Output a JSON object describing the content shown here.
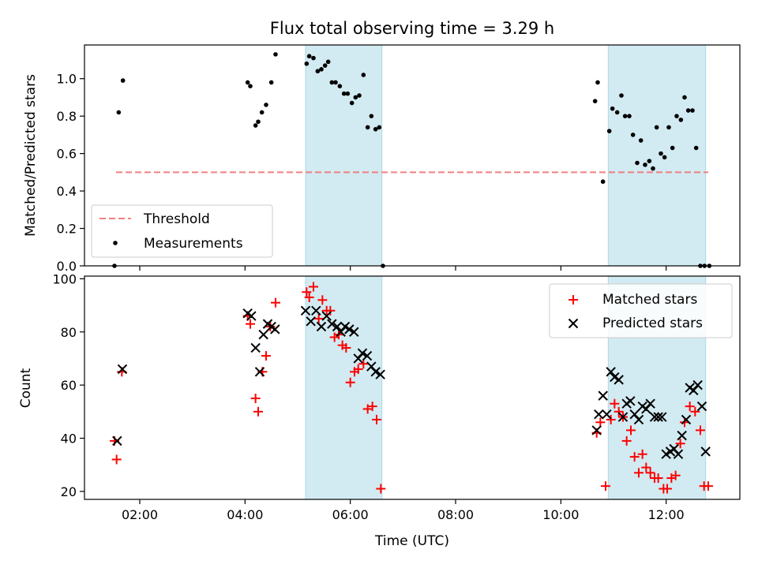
{
  "title": "Flux total observing time = 3.29 h",
  "colors": {
    "shade": "#add8e6",
    "threshold": "#f08080",
    "measurement": "#000000",
    "matched": "#ff0000",
    "predicted": "#000000"
  },
  "chart_data": [
    {
      "type": "scatter",
      "ylabel": "Matched/Predicted stars",
      "ylim": [
        0,
        1.18
      ],
      "yticks": [
        0.0,
        0.2,
        0.4,
        0.6,
        0.8,
        1.0
      ],
      "ytick_labels": [
        "0.0",
        "0.2",
        "0.4",
        "0.6",
        "0.8",
        "1.0"
      ],
      "legend_position": "lower-left",
      "legend": [
        {
          "key": "threshold",
          "label": "Threshold"
        },
        {
          "key": "measurement",
          "label": "Measurements"
        }
      ],
      "threshold": {
        "value": 0.5,
        "x": [
          1.55,
          12.8
        ]
      },
      "shaded_ranges": [
        [
          5.15,
          6.6
        ],
        [
          10.9,
          12.75
        ]
      ],
      "series": [
        {
          "name": "Measurements",
          "x": [
            1.52,
            1.6,
            1.68,
            4.05,
            4.1,
            4.2,
            4.25,
            4.32,
            4.4,
            4.5,
            4.58,
            5.17,
            5.22,
            5.3,
            5.38,
            5.45,
            5.52,
            5.58,
            5.65,
            5.72,
            5.8,
            5.88,
            5.95,
            6.03,
            6.1,
            6.17,
            6.25,
            6.33,
            6.4,
            6.48,
            6.55,
            6.62,
            10.65,
            10.7,
            10.8,
            10.92,
            10.98,
            11.07,
            11.15,
            11.22,
            11.3,
            11.37,
            11.45,
            11.52,
            11.6,
            11.68,
            11.75,
            11.82,
            11.9,
            11.97,
            12.05,
            12.12,
            12.2,
            12.28,
            12.35,
            12.42,
            12.5,
            12.57,
            12.65,
            12.73,
            12.82
          ],
          "y": [
            0.0,
            0.82,
            0.99,
            0.98,
            0.96,
            0.75,
            0.77,
            0.82,
            0.86,
            0.98,
            1.13,
            1.08,
            1.12,
            1.11,
            1.04,
            1.05,
            1.07,
            1.09,
            0.98,
            0.98,
            0.96,
            0.92,
            0.92,
            0.87,
            0.9,
            0.91,
            1.02,
            0.74,
            0.8,
            0.73,
            0.74,
            0.0,
            0.88,
            0.98,
            0.45,
            0.72,
            0.84,
            0.82,
            0.91,
            0.8,
            0.8,
            0.7,
            0.55,
            0.67,
            0.54,
            0.56,
            0.52,
            0.74,
            0.6,
            0.58,
            0.74,
            0.63,
            0.8,
            0.78,
            0.9,
            0.83,
            0.83,
            0.63,
            0.0,
            0.0,
            0.0
          ]
        }
      ]
    },
    {
      "type": "scatter",
      "xlabel": "Time (UTC)",
      "ylabel": "Count",
      "xlim": [
        0.95,
        13.4
      ],
      "ylim": [
        17,
        101
      ],
      "xticks": [
        2,
        4,
        6,
        8,
        10,
        12
      ],
      "xtick_labels": [
        "02:00",
        "04:00",
        "06:00",
        "08:00",
        "10:00",
        "12:00"
      ],
      "yticks": [
        20,
        40,
        60,
        80,
        100
      ],
      "ytick_labels": [
        "20",
        "40",
        "60",
        "80",
        "100"
      ],
      "legend_position": "upper-right",
      "legend": [
        {
          "key": "matched",
          "label": "Matched stars"
        },
        {
          "key": "predicted",
          "label": "Predicted stars"
        }
      ],
      "shaded_ranges": [
        [
          5.15,
          6.6
        ],
        [
          10.9,
          12.75
        ]
      ],
      "series": [
        {
          "name": "Matched stars",
          "x": [
            1.52,
            1.56,
            1.66,
            4.05,
            4.1,
            4.2,
            4.25,
            4.33,
            4.4,
            4.48,
            4.58,
            5.17,
            5.22,
            5.3,
            5.4,
            5.47,
            5.55,
            5.62,
            5.7,
            5.78,
            5.85,
            5.92,
            6.0,
            6.08,
            6.15,
            6.25,
            6.33,
            6.42,
            6.5,
            6.58,
            10.68,
            10.75,
            10.85,
            10.95,
            11.02,
            11.1,
            11.18,
            11.25,
            11.33,
            11.4,
            11.48,
            11.55,
            11.62,
            11.7,
            11.78,
            11.85,
            11.95,
            12.02,
            12.1,
            12.18,
            12.27,
            12.35,
            12.45,
            12.55,
            12.65,
            12.72,
            12.8
          ],
          "y": [
            39,
            32,
            65,
            86,
            83,
            55,
            50,
            65,
            71,
            82,
            91,
            95,
            93,
            97,
            85,
            92,
            88,
            88,
            78,
            79,
            75,
            74,
            61,
            65,
            66,
            68,
            51,
            52,
            47,
            21,
            42,
            46,
            22,
            47,
            53,
            50,
            48,
            39,
            43,
            33,
            27,
            34,
            29,
            27,
            25,
            25,
            21,
            21,
            25,
            26,
            38,
            46,
            52,
            50,
            43,
            22,
            22
          ]
        },
        {
          "name": "Predicted stars",
          "x": [
            1.57,
            1.67,
            4.05,
            4.12,
            4.2,
            4.28,
            4.35,
            4.43,
            4.5,
            4.57,
            5.15,
            5.25,
            5.35,
            5.45,
            5.55,
            5.65,
            5.75,
            5.82,
            5.9,
            5.98,
            6.07,
            6.15,
            6.23,
            6.32,
            6.4,
            6.48,
            6.57,
            10.68,
            10.72,
            10.8,
            10.87,
            10.95,
            11.02,
            11.1,
            11.18,
            11.25,
            11.32,
            11.4,
            11.48,
            11.55,
            11.62,
            11.7,
            11.78,
            11.85,
            11.92,
            12.0,
            12.08,
            12.15,
            12.23,
            12.3,
            12.38,
            12.45,
            12.52,
            12.6,
            12.68,
            12.75
          ],
          "y": [
            39,
            66,
            87,
            86,
            74,
            65,
            79,
            83,
            82,
            81,
            88,
            84,
            88,
            82,
            86,
            83,
            82,
            80,
            82,
            81,
            80,
            70,
            72,
            71,
            67,
            65,
            64,
            43,
            49,
            56,
            49,
            65,
            63,
            62,
            48,
            53,
            54,
            49,
            47,
            52,
            51,
            53,
            48,
            48,
            48,
            34,
            35,
            36,
            34,
            41,
            47,
            59,
            58,
            60,
            52,
            35
          ]
        }
      ]
    }
  ]
}
